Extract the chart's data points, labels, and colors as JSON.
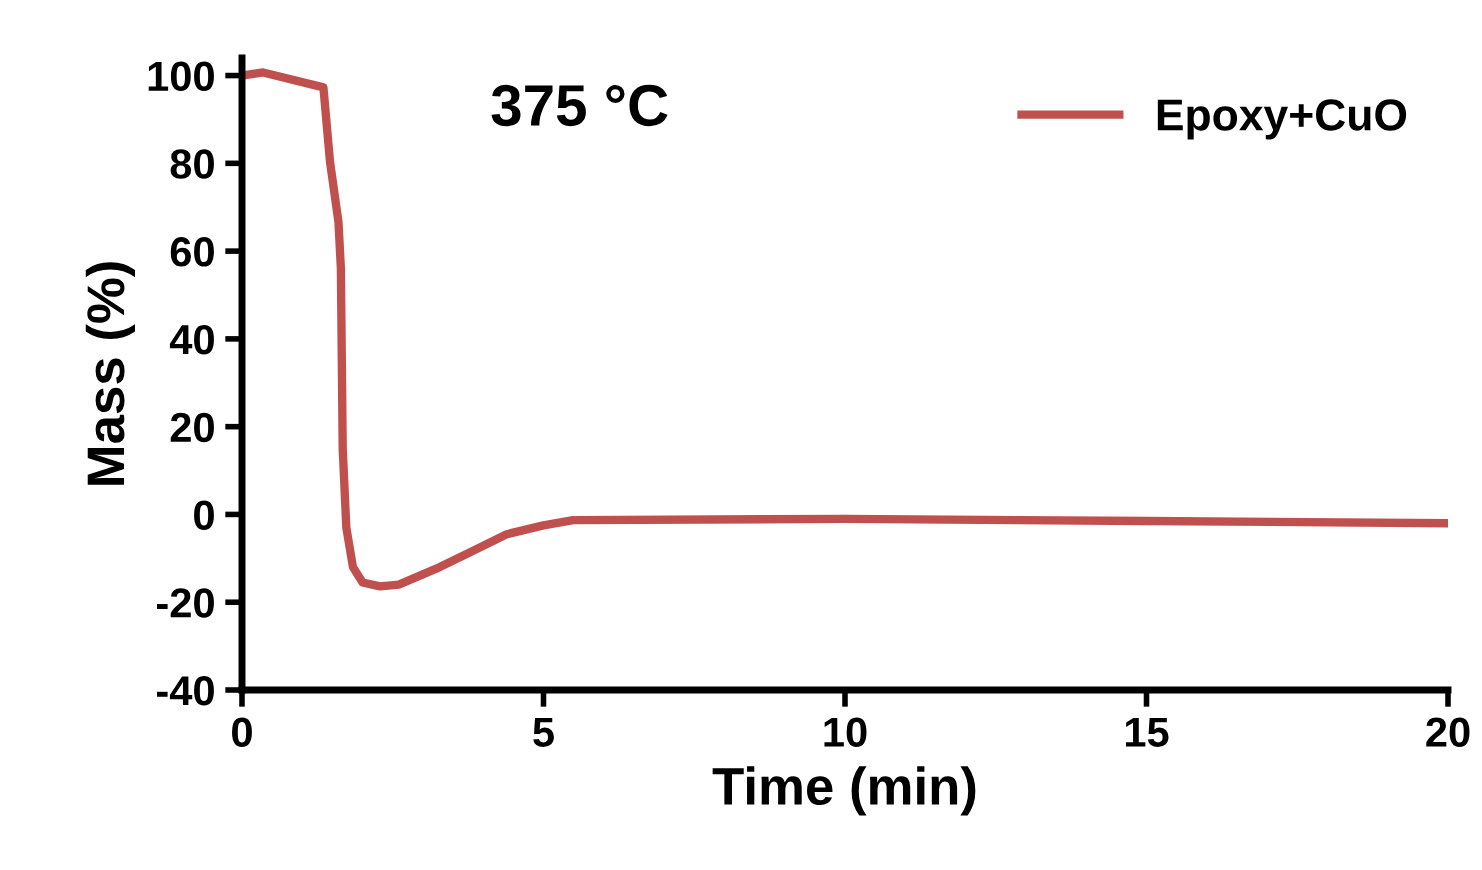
{
  "chart_data": {
    "type": "line",
    "xlabel": "Time (min)",
    "ylabel": "Mass (%)",
    "annotations": [
      "375 °C"
    ],
    "xlim": [
      0,
      20
    ],
    "xticks": [
      0,
      5,
      10,
      15,
      20
    ],
    "ylim": [
      -40,
      104
    ],
    "yticks": [
      -40,
      -20,
      0,
      20,
      40,
      60,
      80,
      100
    ],
    "grid": false,
    "legend": "top right",
    "marker": "none",
    "line_style": "solid",
    "series": [
      {
        "name": "Epoxy+CuO",
        "color": "#c0504d",
        "x": [
          0,
          0.35,
          1.35,
          1.46,
          1.6,
          1.64,
          1.67,
          1.73,
          1.84,
          2.0,
          2.29,
          2.6,
          3.28,
          3.8,
          4.39,
          5.0,
          5.49,
          10,
          15,
          20
        ],
        "values": [
          100,
          100.7,
          97.3,
          80.3,
          66.6,
          56,
          15,
          -3,
          -12,
          -15.5,
          -16.4,
          -16,
          -12,
          -8.5,
          -4.5,
          -2.5,
          -1.3,
          -1,
          -1.5,
          -2
        ]
      }
    ]
  }
}
